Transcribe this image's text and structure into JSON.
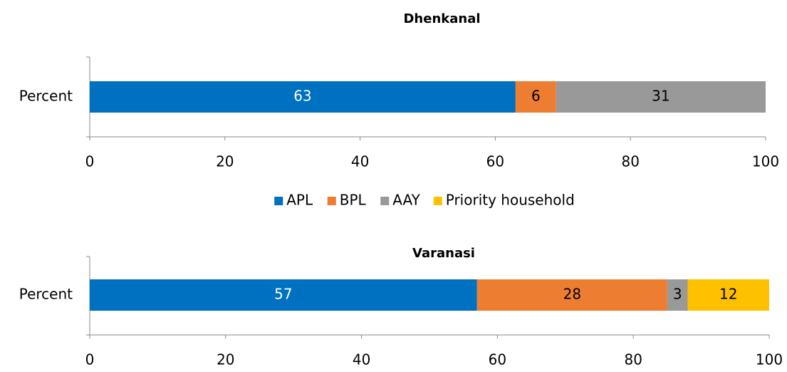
{
  "chart_data": [
    {
      "type": "stacked_barh",
      "title": "Dhenkanal",
      "categories": [
        "Percent"
      ],
      "series": [
        {
          "name": "APL",
          "color": "#0070c0",
          "label_color": "#ffffff",
          "values": [
            63
          ]
        },
        {
          "name": "BPL",
          "color": "#ed7d31",
          "label_color": "#000000",
          "values": [
            6
          ]
        },
        {
          "name": "AAY",
          "color": "#999999",
          "label_color": "#000000",
          "values": [
            31
          ]
        },
        {
          "name": "Priority household",
          "color": "#ffc000",
          "label_color": "#000000",
          "values": [
            null
          ]
        }
      ],
      "xlim": [
        0,
        100
      ],
      "xticks": [
        0,
        20,
        40,
        60,
        80,
        100
      ],
      "legend": "bottom"
    },
    {
      "type": "stacked_barh",
      "title": "Varanasi",
      "categories": [
        "Percent"
      ],
      "series": [
        {
          "name": "APL",
          "color": "#0070c0",
          "label_color": "#ffffff",
          "values": [
            57
          ]
        },
        {
          "name": "BPL",
          "color": "#ed7d31",
          "label_color": "#000000",
          "values": [
            28
          ]
        },
        {
          "name": "AAY",
          "color": "#999999",
          "label_color": "#000000",
          "values": [
            3
          ]
        },
        {
          "name": "Priority household",
          "color": "#ffc000",
          "label_color": "#000000",
          "values": [
            12
          ]
        }
      ],
      "xlim": [
        0,
        100
      ],
      "xticks": [
        0,
        20,
        40,
        60,
        80,
        100
      ]
    }
  ]
}
